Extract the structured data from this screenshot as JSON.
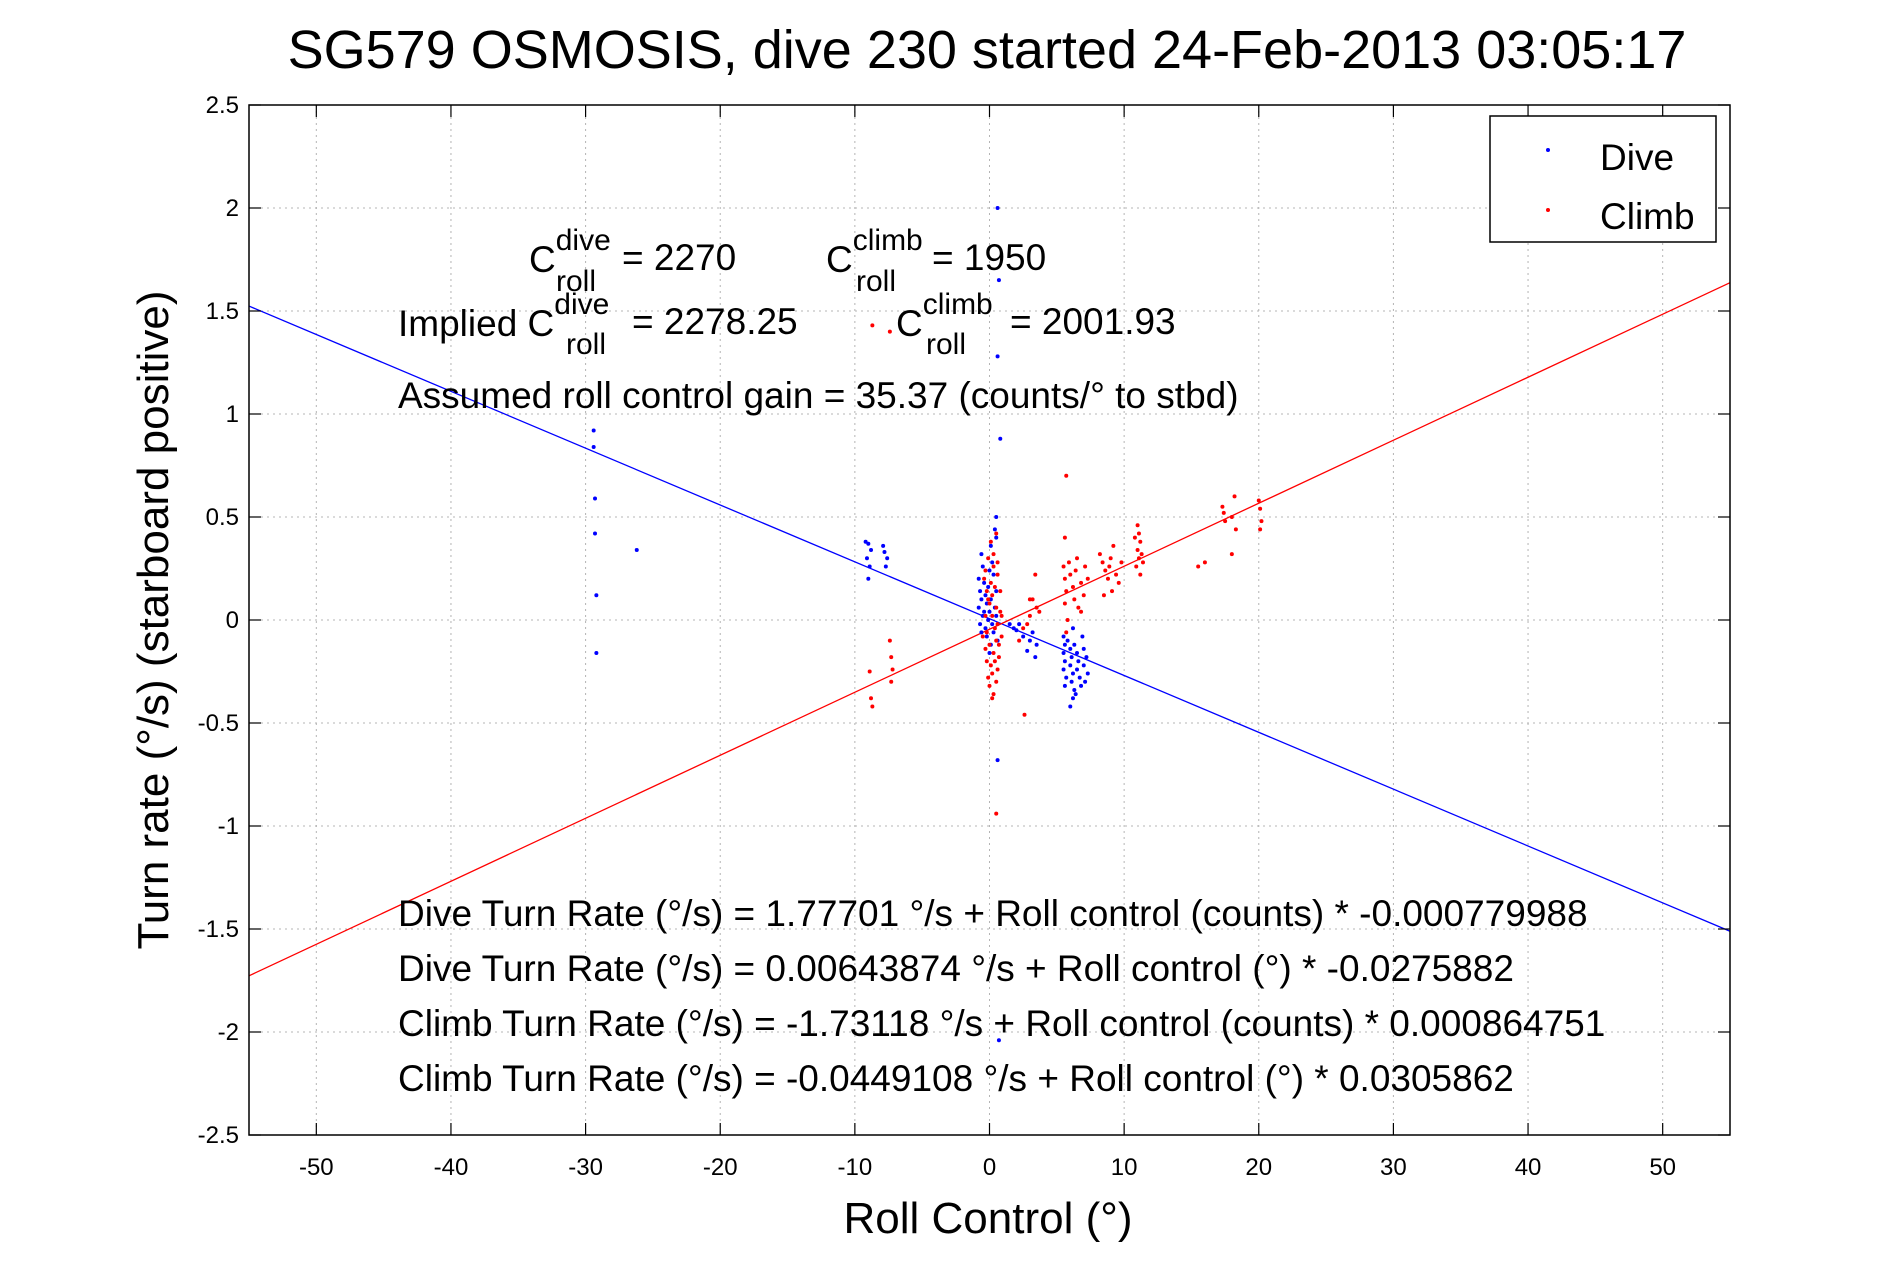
{
  "chart_data": {
    "type": "scatter",
    "title": "SG579 OSMOSIS, dive 230 started 24-Feb-2013 03:05:17",
    "xlabel": "Roll Control (°)",
    "ylabel": "Turn rate (°/s)  (starboard positive)",
    "xlim": [
      -55,
      55
    ],
    "ylim": [
      -2.5,
      2.5
    ],
    "x_ticks": [
      -50,
      -40,
      -30,
      -20,
      -10,
      0,
      10,
      20,
      30,
      40,
      50
    ],
    "y_ticks": [
      -2.5,
      -2,
      -1.5,
      -1,
      -0.5,
      0,
      0.5,
      1,
      1.5,
      2,
      2.5
    ],
    "y_tick_labels": [
      "-2.5",
      "-2",
      "-1.5",
      "-1",
      "-0.5",
      "0",
      "0.5",
      "1",
      "1.5",
      "2",
      "2.5"
    ],
    "grid": true,
    "legend_position": "top-right",
    "series": [
      {
        "name": "Dive",
        "color": "#0000ff",
        "points": [
          [
            -29.4,
            0.92
          ],
          [
            -29.4,
            0.84
          ],
          [
            -29.3,
            0.59
          ],
          [
            -29.3,
            0.42
          ],
          [
            -29.2,
            0.12
          ],
          [
            -29.2,
            -0.16
          ],
          [
            -26.2,
            0.34
          ],
          [
            -9.2,
            0.38
          ],
          [
            -9.0,
            0.37
          ],
          [
            -8.8,
            0.34
          ],
          [
            -9.1,
            0.3
          ],
          [
            -8.9,
            0.26
          ],
          [
            -9.0,
            0.2
          ],
          [
            -7.9,
            0.36
          ],
          [
            -7.8,
            0.33
          ],
          [
            -7.6,
            0.3
          ],
          [
            -7.7,
            0.26
          ],
          [
            -0.8,
            0.2
          ],
          [
            -0.7,
            0.14
          ],
          [
            -0.6,
            0.1
          ],
          [
            -0.8,
            0.06
          ],
          [
            -0.5,
            0.02
          ],
          [
            -0.7,
            -0.02
          ],
          [
            -0.6,
            -0.06
          ],
          [
            -0.4,
            0.18
          ],
          [
            -0.3,
            0.12
          ],
          [
            -0.2,
            0.08
          ],
          [
            -0.4,
            0.04
          ],
          [
            -0.1,
            0.0
          ],
          [
            -0.3,
            -0.04
          ],
          [
            0.0,
            0.24
          ],
          [
            -0.1,
            0.16
          ],
          [
            0.1,
            0.1
          ],
          [
            0.0,
            0.04
          ],
          [
            0.2,
            -0.02
          ],
          [
            -0.2,
            -0.08
          ],
          [
            0.1,
            -0.12
          ],
          [
            0.3,
            0.22
          ],
          [
            0.2,
            0.28
          ],
          [
            0.4,
            0.06
          ],
          [
            0.5,
            0.02
          ],
          [
            0.3,
            -0.06
          ],
          [
            0.6,
            -0.1
          ],
          [
            0.5,
            0.14
          ],
          [
            -0.5,
            0.26
          ],
          [
            -0.6,
            0.32
          ],
          [
            0.1,
            0.36
          ],
          [
            0.0,
            -0.16
          ],
          [
            0.6,
            2.0
          ],
          [
            0.7,
            1.65
          ],
          [
            0.6,
            1.28
          ],
          [
            0.8,
            0.88
          ],
          [
            0.5,
            0.5
          ],
          [
            0.6,
            -0.68
          ],
          [
            0.7,
            -2.04
          ],
          [
            0.4,
            0.44
          ],
          [
            0.5,
            0.4
          ],
          [
            1.5,
            -0.02
          ],
          [
            2.0,
            -0.05
          ],
          [
            2.5,
            -0.08
          ],
          [
            3.0,
            -0.1
          ],
          [
            3.5,
            -0.12
          ],
          [
            3.2,
            -0.06
          ],
          [
            2.2,
            -0.02
          ],
          [
            1.8,
            -0.04
          ],
          [
            2.8,
            -0.15
          ],
          [
            3.4,
            -0.18
          ],
          [
            5.5,
            -0.08
          ],
          [
            5.6,
            -0.12
          ],
          [
            5.5,
            -0.16
          ],
          [
            5.6,
            -0.2
          ],
          [
            5.5,
            -0.24
          ],
          [
            5.7,
            -0.28
          ],
          [
            5.6,
            -0.32
          ],
          [
            5.8,
            -0.1
          ],
          [
            6.0,
            -0.14
          ],
          [
            6.1,
            -0.18
          ],
          [
            6.0,
            -0.22
          ],
          [
            6.2,
            -0.26
          ],
          [
            6.1,
            -0.3
          ],
          [
            6.3,
            -0.34
          ],
          [
            6.2,
            -0.38
          ],
          [
            6.3,
            -0.12
          ],
          [
            6.5,
            -0.16
          ],
          [
            6.6,
            -0.2
          ],
          [
            6.5,
            -0.24
          ],
          [
            6.7,
            -0.28
          ],
          [
            6.8,
            -0.32
          ],
          [
            7.0,
            -0.14
          ],
          [
            7.0,
            -0.22
          ],
          [
            7.1,
            -0.3
          ],
          [
            7.2,
            -0.18
          ],
          [
            7.3,
            -0.26
          ],
          [
            6.2,
            -0.04
          ],
          [
            6.0,
            -0.42
          ],
          [
            6.4,
            -0.36
          ],
          [
            6.9,
            -0.08
          ]
        ]
      },
      {
        "name": "Climb",
        "color": "#ff0000",
        "points": [
          [
            -8.9,
            -0.25
          ],
          [
            -8.8,
            -0.38
          ],
          [
            -8.7,
            -0.42
          ],
          [
            -7.4,
            -0.1
          ],
          [
            -7.3,
            -0.18
          ],
          [
            -7.2,
            -0.24
          ],
          [
            -7.3,
            -0.3
          ],
          [
            -7.4,
            1.4
          ],
          [
            -8.7,
            1.43
          ],
          [
            -0.4,
            0.2
          ],
          [
            -0.2,
            0.14
          ],
          [
            0.0,
            0.08
          ],
          [
            0.2,
            0.02
          ],
          [
            0.4,
            -0.04
          ],
          [
            0.5,
            -0.1
          ],
          [
            0.3,
            -0.16
          ],
          [
            0.1,
            -0.22
          ],
          [
            -0.1,
            -0.28
          ],
          [
            -0.3,
            -0.14
          ],
          [
            -0.5,
            -0.08
          ],
          [
            -0.3,
            0.02
          ],
          [
            -0.1,
            0.1
          ],
          [
            0.1,
            0.18
          ],
          [
            0.3,
            0.26
          ],
          [
            0.5,
            0.06
          ],
          [
            0.6,
            -0.02
          ],
          [
            0.4,
            -0.2
          ],
          [
            0.2,
            -0.26
          ],
          [
            0.0,
            -0.32
          ],
          [
            -0.2,
            -0.06
          ],
          [
            0.0,
            -0.12
          ],
          [
            0.2,
            0.12
          ],
          [
            0.4,
            0.16
          ],
          [
            0.6,
            0.22
          ],
          [
            0.8,
            0.04
          ],
          [
            0.9,
            -0.08
          ],
          [
            0.7,
            -0.18
          ],
          [
            0.5,
            -0.3
          ],
          [
            0.3,
            0.32
          ],
          [
            0.1,
            0.38
          ],
          [
            -0.1,
            0.3
          ],
          [
            -0.3,
            0.24
          ],
          [
            0.5,
            0.42
          ],
          [
            0.3,
            -0.36
          ],
          [
            0.6,
            -0.24
          ],
          [
            0.8,
            0.14
          ],
          [
            0.7,
            -0.12
          ],
          [
            0.9,
            0.02
          ],
          [
            -0.2,
            -0.2
          ],
          [
            0.2,
            -0.38
          ],
          [
            0.5,
            -0.94
          ],
          [
            0.6,
            0.28
          ],
          [
            2.2,
            -0.1
          ],
          [
            2.5,
            -0.04
          ],
          [
            3.0,
            0.02
          ],
          [
            3.5,
            0.06
          ],
          [
            3.2,
            0.1
          ],
          [
            2.8,
            -0.02
          ],
          [
            2.6,
            -0.46
          ],
          [
            3.4,
            0.22
          ],
          [
            3.0,
            0.1
          ],
          [
            3.7,
            0.04
          ],
          [
            5.7,
            0.7
          ],
          [
            5.6,
            0.4
          ],
          [
            5.5,
            0.26
          ],
          [
            5.6,
            0.2
          ],
          [
            5.7,
            0.14
          ],
          [
            5.6,
            0.08
          ],
          [
            5.8,
            0.0
          ],
          [
            5.7,
            -0.06
          ],
          [
            6.0,
            0.22
          ],
          [
            6.2,
            0.16
          ],
          [
            6.4,
            0.24
          ],
          [
            6.5,
            0.3
          ],
          [
            6.8,
            0.18
          ],
          [
            7.0,
            0.12
          ],
          [
            6.6,
            0.06
          ],
          [
            6.3,
            0.1
          ],
          [
            7.1,
            0.26
          ],
          [
            7.3,
            0.2
          ],
          [
            5.9,
            0.28
          ],
          [
            6.8,
            0.04
          ],
          [
            8.2,
            0.32
          ],
          [
            8.4,
            0.28
          ],
          [
            8.6,
            0.24
          ],
          [
            8.8,
            0.2
          ],
          [
            9.0,
            0.3
          ],
          [
            9.2,
            0.36
          ],
          [
            8.9,
            0.26
          ],
          [
            9.4,
            0.22
          ],
          [
            9.6,
            0.18
          ],
          [
            9.8,
            0.28
          ],
          [
            9.1,
            0.14
          ],
          [
            8.5,
            0.12
          ],
          [
            11.0,
            0.46
          ],
          [
            11.1,
            0.42
          ],
          [
            11.2,
            0.38
          ],
          [
            11.0,
            0.34
          ],
          [
            11.1,
            0.3
          ],
          [
            10.9,
            0.26
          ],
          [
            11.2,
            0.22
          ],
          [
            11.3,
            0.32
          ],
          [
            10.8,
            0.4
          ],
          [
            11.4,
            0.28
          ],
          [
            15.5,
            0.26
          ],
          [
            16.0,
            0.28
          ],
          [
            17.3,
            0.55
          ],
          [
            17.4,
            0.52
          ],
          [
            17.5,
            0.48
          ],
          [
            18.2,
            0.6
          ],
          [
            18.0,
            0.5
          ],
          [
            18.3,
            0.44
          ],
          [
            18.0,
            0.32
          ],
          [
            20.0,
            0.58
          ],
          [
            20.1,
            0.54
          ],
          [
            20.2,
            0.48
          ],
          [
            20.1,
            0.44
          ]
        ]
      }
    ],
    "fit_lines": [
      {
        "name": "Dive fit",
        "color": "#0000ff",
        "intercept": 0.00643874,
        "slope": -0.0275882
      },
      {
        "name": "Climb fit",
        "color": "#ff0000",
        "intercept": -0.0449108,
        "slope": 0.0305862
      }
    ],
    "annotations": {
      "c_dive_prefix": "C",
      "c_dive_sup": "dive",
      "c_dive_sub": "roll",
      "c_dive_value": " = 2270",
      "c_climb_prefix": "C",
      "c_climb_sup": "climb",
      "c_climb_sub": "roll",
      "c_climb_value": " = 1950",
      "implied_prefix": "Implied C",
      "implied_dive_sup": "dive",
      "implied_dive_sub": "roll",
      "implied_dive_value": " = 2278.25",
      "implied_climb_prefix": "C",
      "implied_climb_sup": "climb",
      "implied_climb_sub": "roll",
      "implied_climb_value": " = 2001.93",
      "gain": "Assumed roll control gain = 35.37 (counts/° to stbd)",
      "eq1": "Dive Turn Rate (°/s) = 1.77701 °/s + Roll control (counts) * -0.000779988",
      "eq2": "Dive Turn Rate (°/s) = 0.00643874 °/s + Roll control (°) * -0.0275882",
      "eq3": "Climb Turn Rate (°/s) = -1.73118 °/s + Roll control (counts) * 0.000864751",
      "eq4": "Climb Turn Rate (°/s) = -0.0449108 °/s + Roll control (°) * 0.0305862"
    }
  }
}
